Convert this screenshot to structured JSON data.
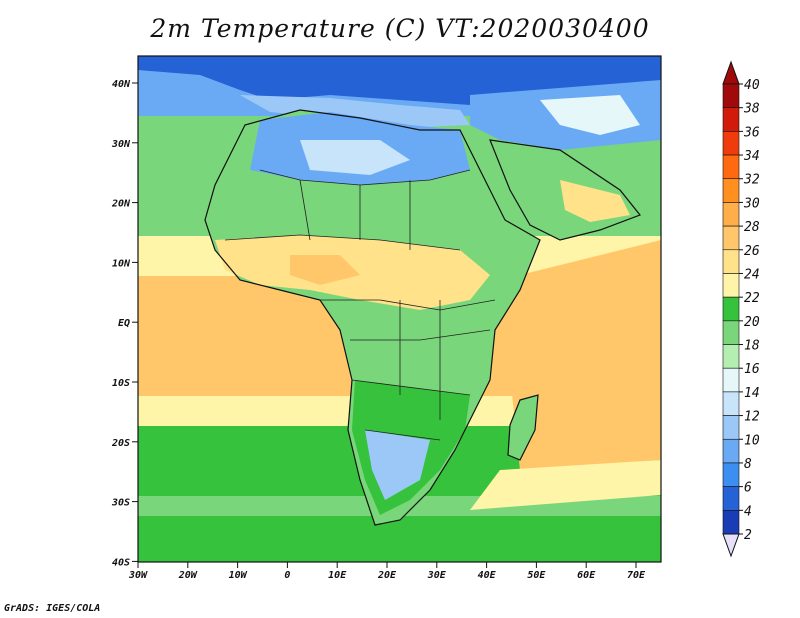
{
  "title": "2m Temperature (C) VT:2020030400",
  "credit": "GrADS: IGES/COLA",
  "axes": {
    "lon_ticks": [
      "30W",
      "20W",
      "10W",
      "0",
      "10E",
      "20E",
      "30E",
      "40E",
      "50E",
      "60E",
      "70E"
    ],
    "lat_ticks": [
      "40N",
      "30N",
      "20N",
      "10N",
      "EQ",
      "10S",
      "20S",
      "30S",
      "40S"
    ]
  },
  "colorbar": {
    "levels": [
      2,
      4,
      6,
      8,
      10,
      12,
      14,
      16,
      18,
      20,
      22,
      24,
      26,
      28,
      30,
      32,
      34,
      36,
      38,
      40
    ],
    "colors": [
      "#0a1a6e",
      "#1a3cb4",
      "#2462d6",
      "#3c8ef0",
      "#6aaaf5",
      "#9cc8f8",
      "#c8e4fb",
      "#e6f7fa",
      "#b4eeb0",
      "#7ad67a",
      "#36c23c",
      "#fff5a8",
      "#ffe28a",
      "#ffc76a",
      "#ffae4a",
      "#ff9020",
      "#ff6a10",
      "#f03c0c",
      "#d21a0a",
      "#a00a0a"
    ],
    "below_color": "#e6e0fa",
    "above_color": "#a00a0a"
  },
  "map_colors": {
    "ocean_warm": "#ffc76a",
    "ocean_mild": "#fff5a8",
    "ocean_cool": "#36c23c",
    "land_green": "#7ad67a",
    "land_blue": "#6aaaf5",
    "land_cold": "#2462d6",
    "land_warm": "#ffe28a"
  }
}
